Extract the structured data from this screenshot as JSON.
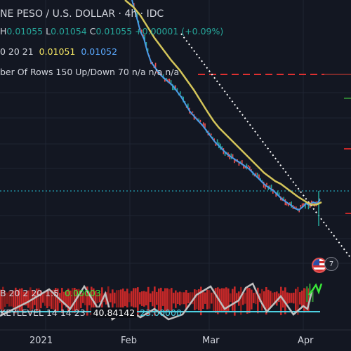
{
  "header": {
    "title": "NE PESO / U.S. DOLLAR · 4h · IDC",
    "ohlc": {
      "h_label": "H",
      "h_value": "0.01055",
      "l_label": "L",
      "l_value": "0.01054",
      "c_label": "C",
      "c_value": "0.01055",
      "change": "+0.00001 (+0.09%)"
    },
    "ma": {
      "label": "0 20 21",
      "value1": "0.01051",
      "value2": "0.01052"
    },
    "volume_profile": {
      "text": "ber Of Rows 150 Up/Down 70  n/a  n/a  n/a"
    }
  },
  "indicators": {
    "bb": {
      "label": "B 20 2 20 1.5",
      "value": "0.00003"
    },
    "keylevel": {
      "label": "KEYLEVEL 14 14 23",
      "value1": "40.84142",
      "value2": "23.00000"
    }
  },
  "flags": {
    "count_badge": "7"
  },
  "x_axis": {
    "labels": [
      "2021",
      "Feb",
      "Mar",
      "Apr"
    ]
  },
  "colors": {
    "background": "#131722",
    "yellow_ma": "#d4c55a",
    "blue_ma": "#4a9be8",
    "candle_up": "#26a69a",
    "candle_down": "#ef5350",
    "red_dashed": "#e03030",
    "cyan_dotted": "#26c6da",
    "white_trend": "#ffffff"
  }
}
